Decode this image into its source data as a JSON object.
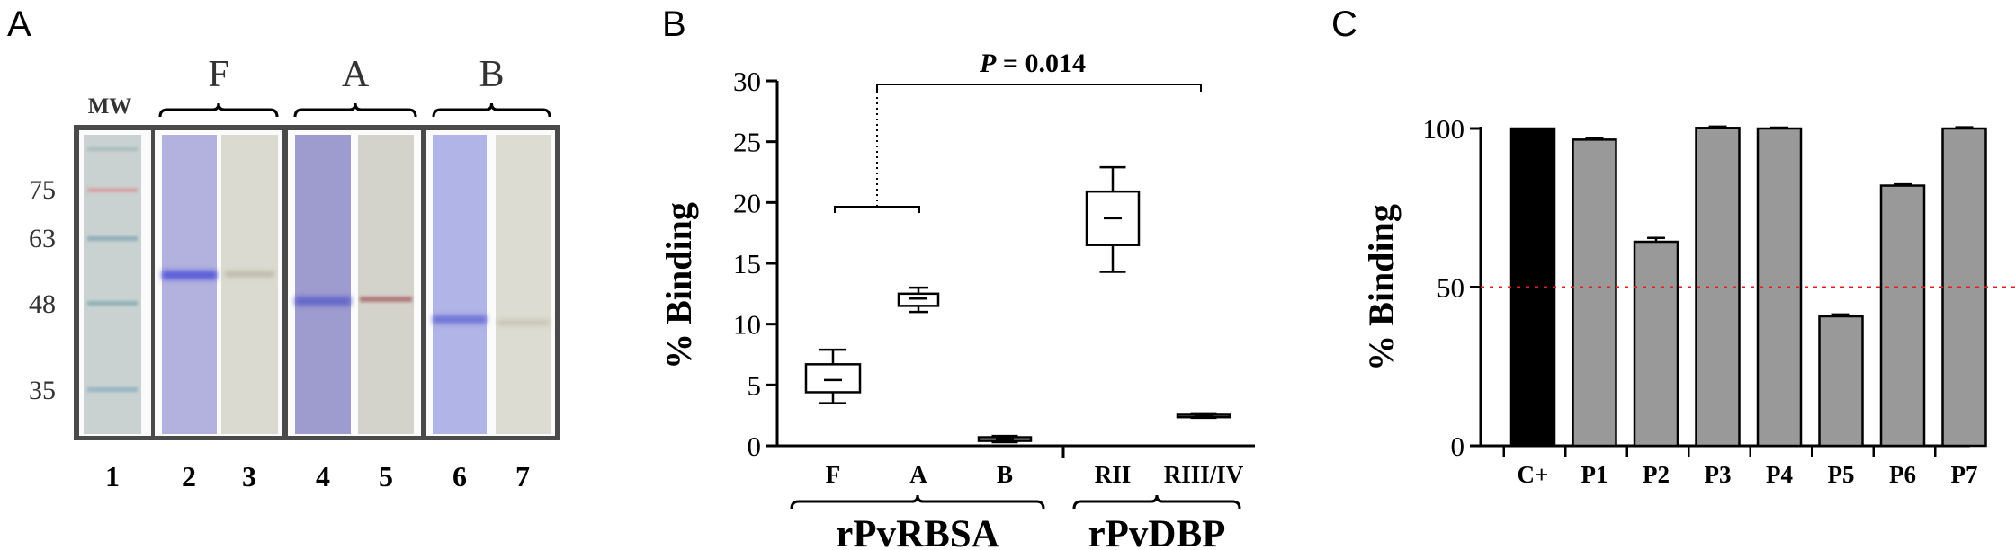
{
  "chart_data": [
    {
      "type": "image",
      "panel_label": "A",
      "mw_label": "MW",
      "mw_markers": [
        75,
        63,
        48,
        35
      ],
      "group_labels": [
        "F",
        "A",
        "B"
      ],
      "lane_numbers": [
        "1",
        "2",
        "3",
        "4",
        "5",
        "6",
        "7"
      ]
    },
    {
      "type": "box",
      "panel_label": "B",
      "ylabel": "% Binding",
      "ylim": [
        0,
        30
      ],
      "yticks": [
        0,
        5,
        10,
        15,
        20,
        25,
        30
      ],
      "categories": [
        "F",
        "A",
        "B",
        "RII",
        "RIII/IV"
      ],
      "group_labels": [
        "rPvRBSA",
        "rPvDBP"
      ],
      "boxes": [
        {
          "category": "F",
          "min": 3.5,
          "q1": 4.4,
          "median": 5.4,
          "q3": 6.7,
          "max": 7.9
        },
        {
          "category": "A",
          "min": 11.0,
          "q1": 11.5,
          "median": 12.1,
          "q3": 12.5,
          "max": 13.0
        },
        {
          "category": "B",
          "min": 0.3,
          "q1": 0.4,
          "median": 0.55,
          "q3": 0.7,
          "max": 0.8
        },
        {
          "category": "RII",
          "min": 14.3,
          "q1": 16.5,
          "median": 18.7,
          "q3": 20.9,
          "max": 22.9
        },
        {
          "category": "RIII/IV",
          "min": 2.3,
          "q1": 2.35,
          "median": 2.45,
          "q3": 2.55,
          "max": 2.6
        }
      ],
      "annotation": {
        "italic": "P",
        "text": " = 0.014"
      }
    },
    {
      "type": "bar",
      "panel_label": "C",
      "ylabel": "% Binding",
      "ylim": [
        0,
        100
      ],
      "yticks": [
        0,
        50,
        100
      ],
      "categories": [
        "C+",
        "P1",
        "P2",
        "P3",
        "P4",
        "P5",
        "P6",
        "P7"
      ],
      "values": [
        100,
        96.5,
        64.3,
        100.2,
        100,
        40.8,
        82,
        100
      ],
      "errors": [
        0,
        0.6,
        1.2,
        0.4,
        0.3,
        0.6,
        0.4,
        0.4
      ],
      "colors": [
        "#000000",
        "#999999",
        "#999999",
        "#999999",
        "#999999",
        "#999999",
        "#999999",
        "#999999"
      ],
      "threshold": 50,
      "threshold_color": "#e02020"
    }
  ]
}
